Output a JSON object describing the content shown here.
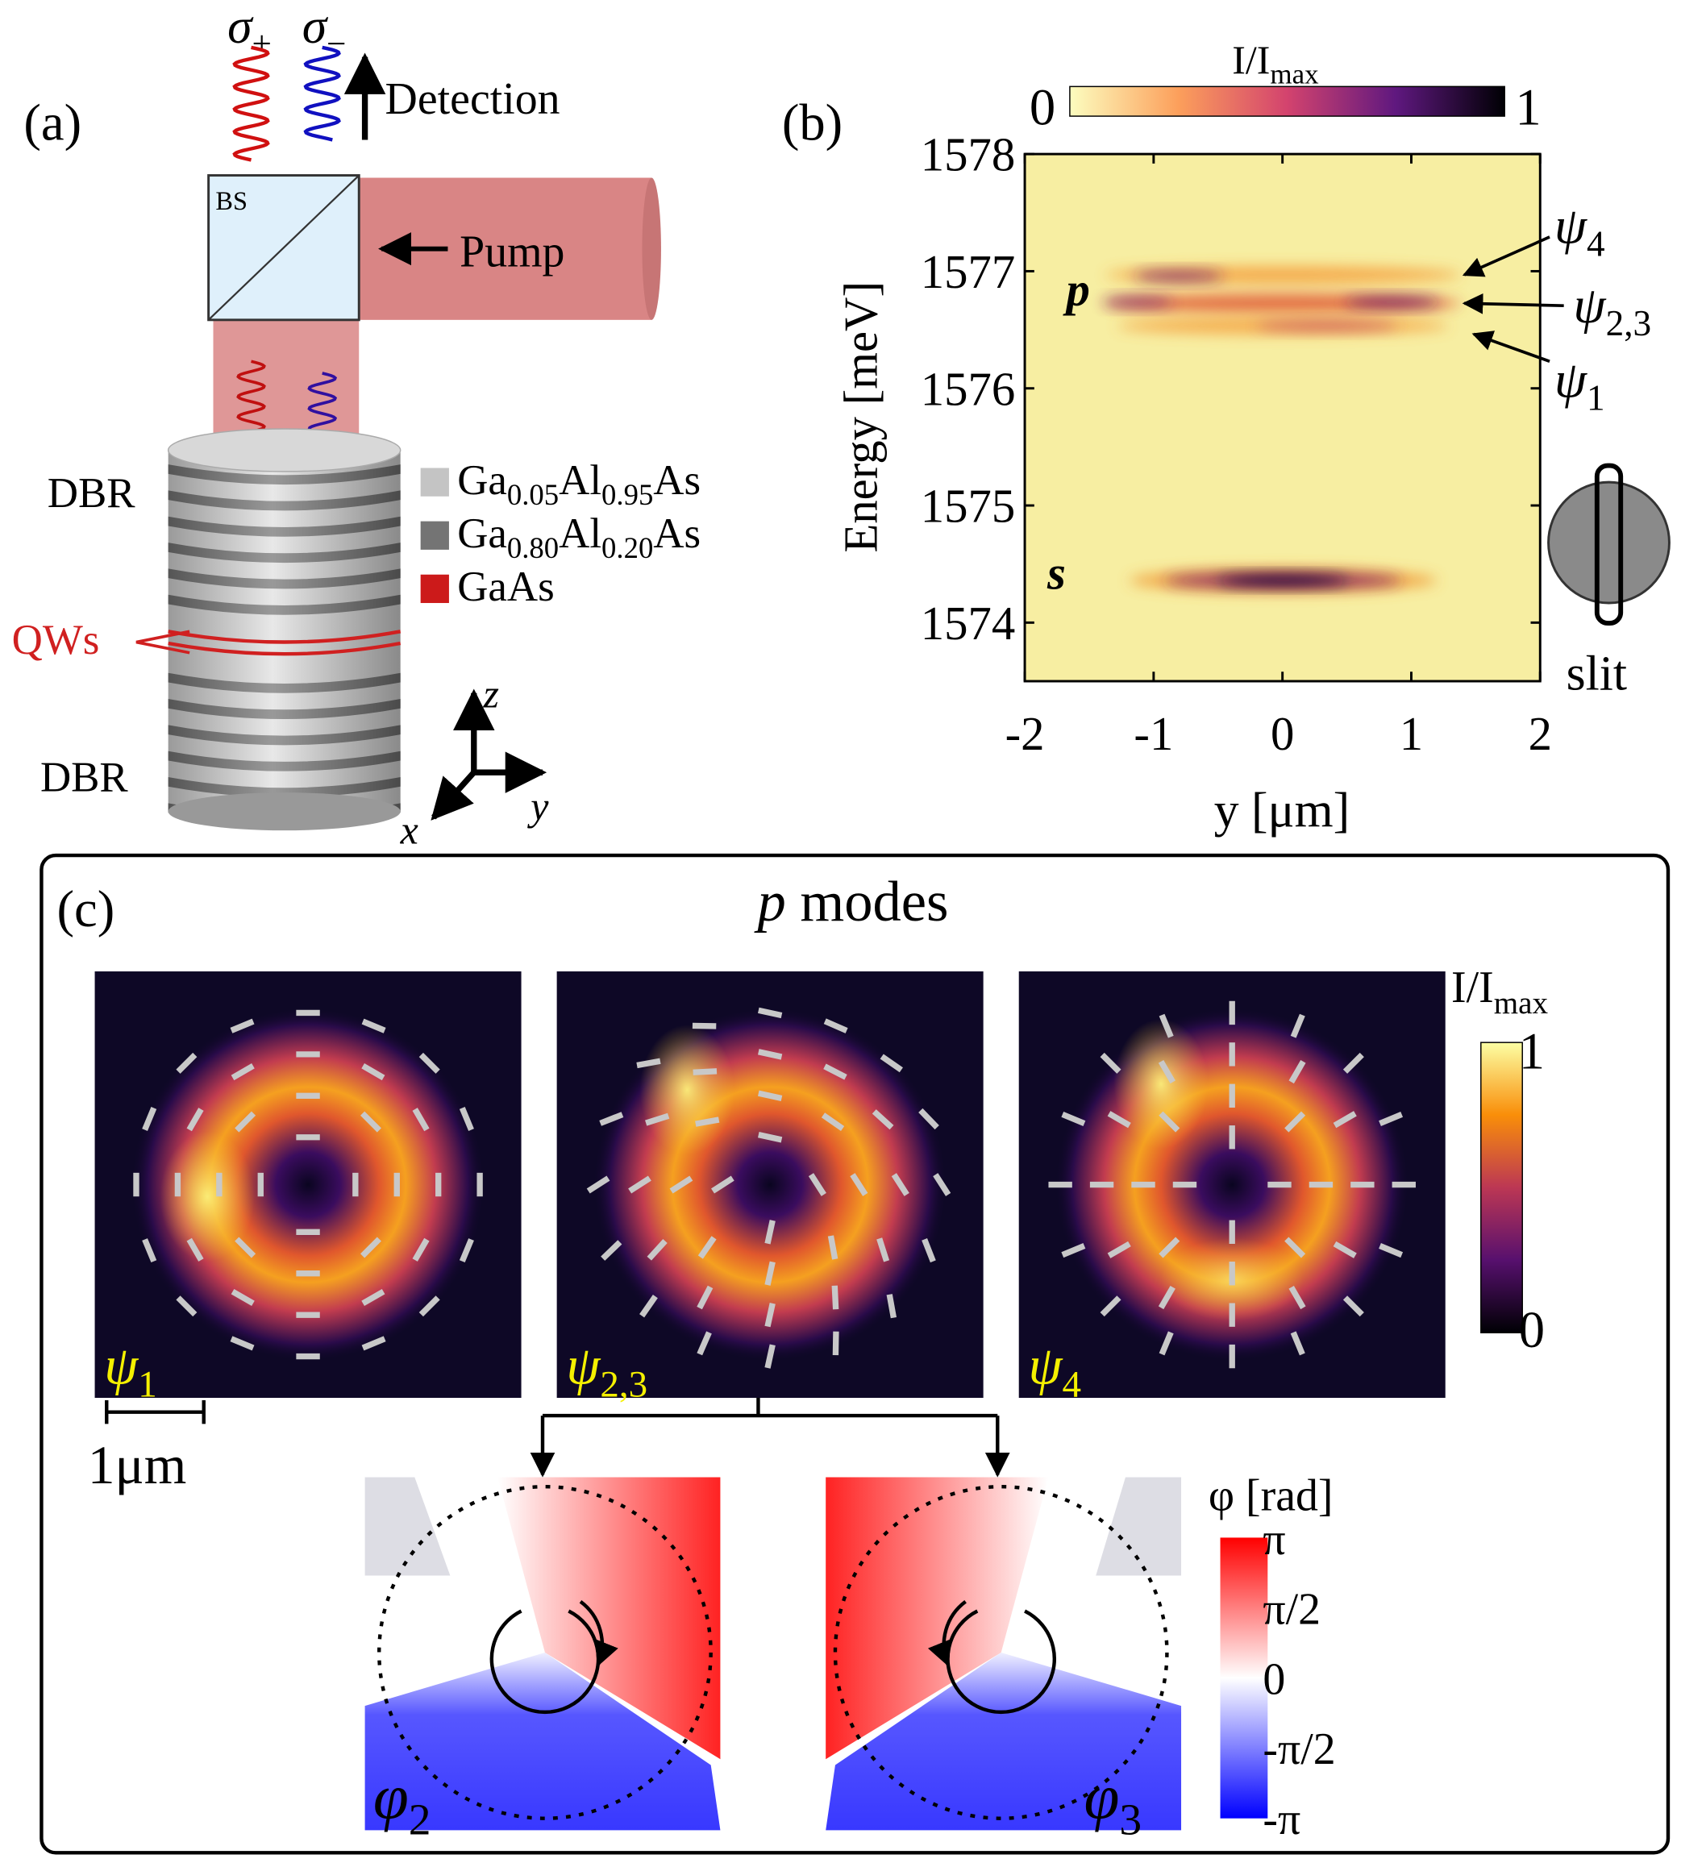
{
  "panel_a": {
    "label": "(a)",
    "polarizations": [
      {
        "symbol": "σ",
        "sub": "+"
      },
      {
        "symbol": "σ",
        "sub": "−"
      }
    ],
    "detection": "Detection",
    "beam_splitter": "BS",
    "pump": "Pump",
    "dbr_top": "DBR",
    "dbr_bottom": "DBR",
    "qws": "QWs",
    "materials": [
      {
        "color": "#c4c4c4",
        "parts": [
          "Ga",
          "0.05",
          "Al",
          "0.95",
          "As"
        ]
      },
      {
        "color": "#747474",
        "parts": [
          "Ga",
          "0.80",
          "Al",
          "0.20",
          "As"
        ]
      },
      {
        "color": "#cc1a1a",
        "parts": [
          "GaAs"
        ]
      }
    ],
    "axes": [
      "z",
      "y",
      "x"
    ]
  },
  "panel_b": {
    "label": "(b)",
    "colorbar": {
      "label": {
        "base": "I/I",
        "sub": "max"
      },
      "ticks": [
        0,
        1
      ]
    },
    "chart_data": {
      "type": "heatmap",
      "ylabel": "Energy [meV]",
      "xlabel": "y [μm]",
      "ylim": [
        1573.5,
        1578
      ],
      "yticks": [
        1574,
        1575,
        1576,
        1577,
        1578
      ],
      "xlim": [
        -2,
        2
      ],
      "xticks": [
        -2,
        -1,
        0,
        1,
        2
      ]
    },
    "mode_labels": [
      "p",
      "s"
    ],
    "annotations": [
      {
        "symbol": "ψ",
        "sub": "4"
      },
      {
        "symbol": "ψ",
        "sub": "2,3"
      },
      {
        "symbol": "ψ",
        "sub": "1"
      }
    ],
    "slit": "slit"
  },
  "panel_c": {
    "label": "(c)",
    "title": {
      "italic": "p",
      "text": "modes"
    },
    "images": [
      {
        "symbol": "ψ",
        "sub": "1"
      },
      {
        "symbol": "ψ",
        "sub": "2,3"
      },
      {
        "symbol": "ψ",
        "sub": "4"
      }
    ],
    "scale_bar": "1μm",
    "intensity_colorbar": {
      "label": {
        "base": "I/I",
        "sub": "max"
      },
      "ticks": [
        1,
        0
      ]
    },
    "phase_maps": [
      {
        "symbol": "φ",
        "sub": "2"
      },
      {
        "symbol": "φ",
        "sub": "3"
      }
    ],
    "phase_colorbar": {
      "label": "φ [rad]",
      "ticks": [
        "π",
        "π/2",
        "0",
        "-π/2",
        "-π"
      ]
    }
  }
}
